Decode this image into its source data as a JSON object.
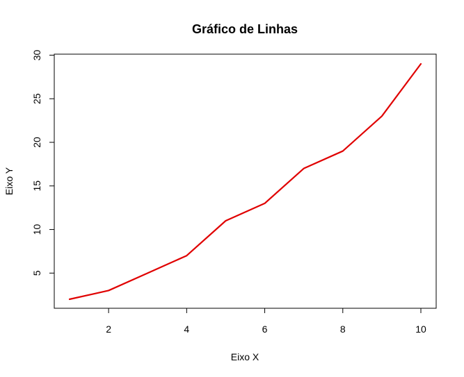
{
  "chart_data": {
    "type": "line",
    "title": "Gráfico de Linhas",
    "xlabel": "Eixo X",
    "ylabel": "Eixo Y",
    "xlim": [
      1,
      10
    ],
    "ylim": [
      2,
      29
    ],
    "x_ticks": [
      2,
      4,
      6,
      8,
      10
    ],
    "y_ticks": [
      5,
      10,
      15,
      20,
      25,
      30
    ],
    "grid": false,
    "series": [
      {
        "color": "#e00000",
        "x": [
          1,
          2,
          3,
          4,
          5,
          6,
          7,
          8,
          9,
          10
        ],
        "y": [
          2,
          3,
          5,
          7,
          11,
          13,
          17,
          19,
          23,
          29
        ]
      }
    ]
  }
}
